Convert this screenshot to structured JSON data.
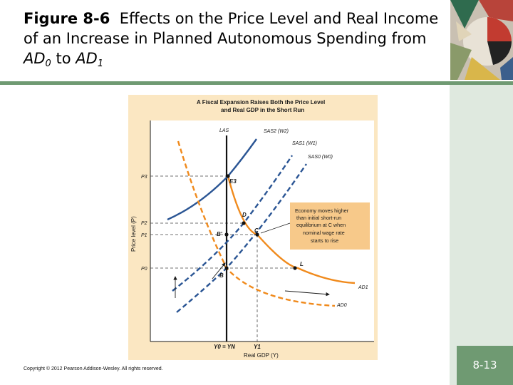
{
  "slide": {
    "figure_label": "Figure 8-6",
    "title_main": "Effects on the Price Level and Real Income of an Increase in Planned Autonomous Spending from",
    "ad0_base": "AD",
    "ad0_sub": "0",
    "title_to": "to",
    "ad1_base": "AD",
    "ad1_sub": "1",
    "copyright": "Copyright © 2012 Pearson Addison-Wesley. All rights reserved.",
    "page_number": "8-13"
  },
  "diagram": {
    "title_line1": "A Fiscal Expansion Raises Both the Price Level",
    "title_line2": "and Real GDP in the Short Run",
    "y_axis_label": "Price level (P)",
    "x_axis_label": "Real GDP (Y)",
    "y_ticks": [
      "P3",
      "P2",
      "P1",
      "P0"
    ],
    "x_ticks": [
      "Y0 = YN",
      "Y1"
    ],
    "curves": {
      "las": "LAS",
      "sas2": "SAS2 (W2)",
      "sas1": "SAS1 (W1)",
      "sas0": "SAS0 (W0)",
      "ad1": "AD1",
      "ad0": "AD0"
    },
    "points": [
      "E3",
      "D",
      "B'",
      "C",
      "B",
      "L"
    ],
    "annotation": [
      "Economy moves higher",
      "than initial short-run",
      "equilibrium at C when",
      "nominal wage rate",
      "starts to rise"
    ],
    "colors": {
      "panel": "#fbe7c2",
      "plot": "#ffffff",
      "annotation_box": "#f7c98a",
      "ad_curve": "#f08a1c",
      "sas_curve": "#2a5594",
      "las_line": "#111111"
    }
  }
}
